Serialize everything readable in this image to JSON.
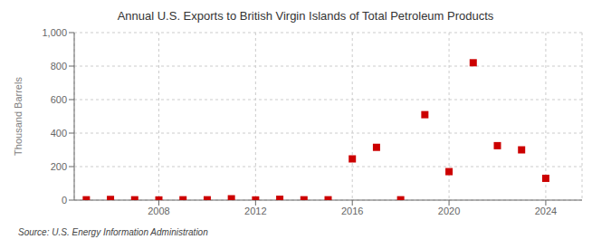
{
  "chart_data": {
    "type": "scatter",
    "title": "Annual U.S. Exports to British Virgin Islands of Total Petroleum Products",
    "ylabel": "Thousand Barrels",
    "annotations": [
      "Source: U.S. Energy Information Administration"
    ],
    "x": [
      2005,
      2006,
      2007,
      2008,
      2009,
      2010,
      2011,
      2012,
      2013,
      2014,
      2015,
      2016,
      2017,
      2018,
      2019,
      2020,
      2021,
      2022,
      2023,
      2024
    ],
    "values": [
      2,
      4,
      2,
      1,
      2,
      2,
      8,
      1,
      5,
      2,
      2,
      246,
      315,
      2,
      510,
      170,
      820,
      325,
      300,
      130
    ],
    "color": "#cc0000",
    "marker": "square",
    "xlim": [
      2004.5,
      2025.5
    ],
    "xticks": [
      2008,
      2012,
      2016,
      2020,
      2024
    ],
    "ylim": [
      0,
      1000
    ],
    "yticks": [
      0,
      200,
      400,
      600,
      800,
      {
        "value": 1000,
        "label": "1,000"
      }
    ],
    "grid": true
  }
}
